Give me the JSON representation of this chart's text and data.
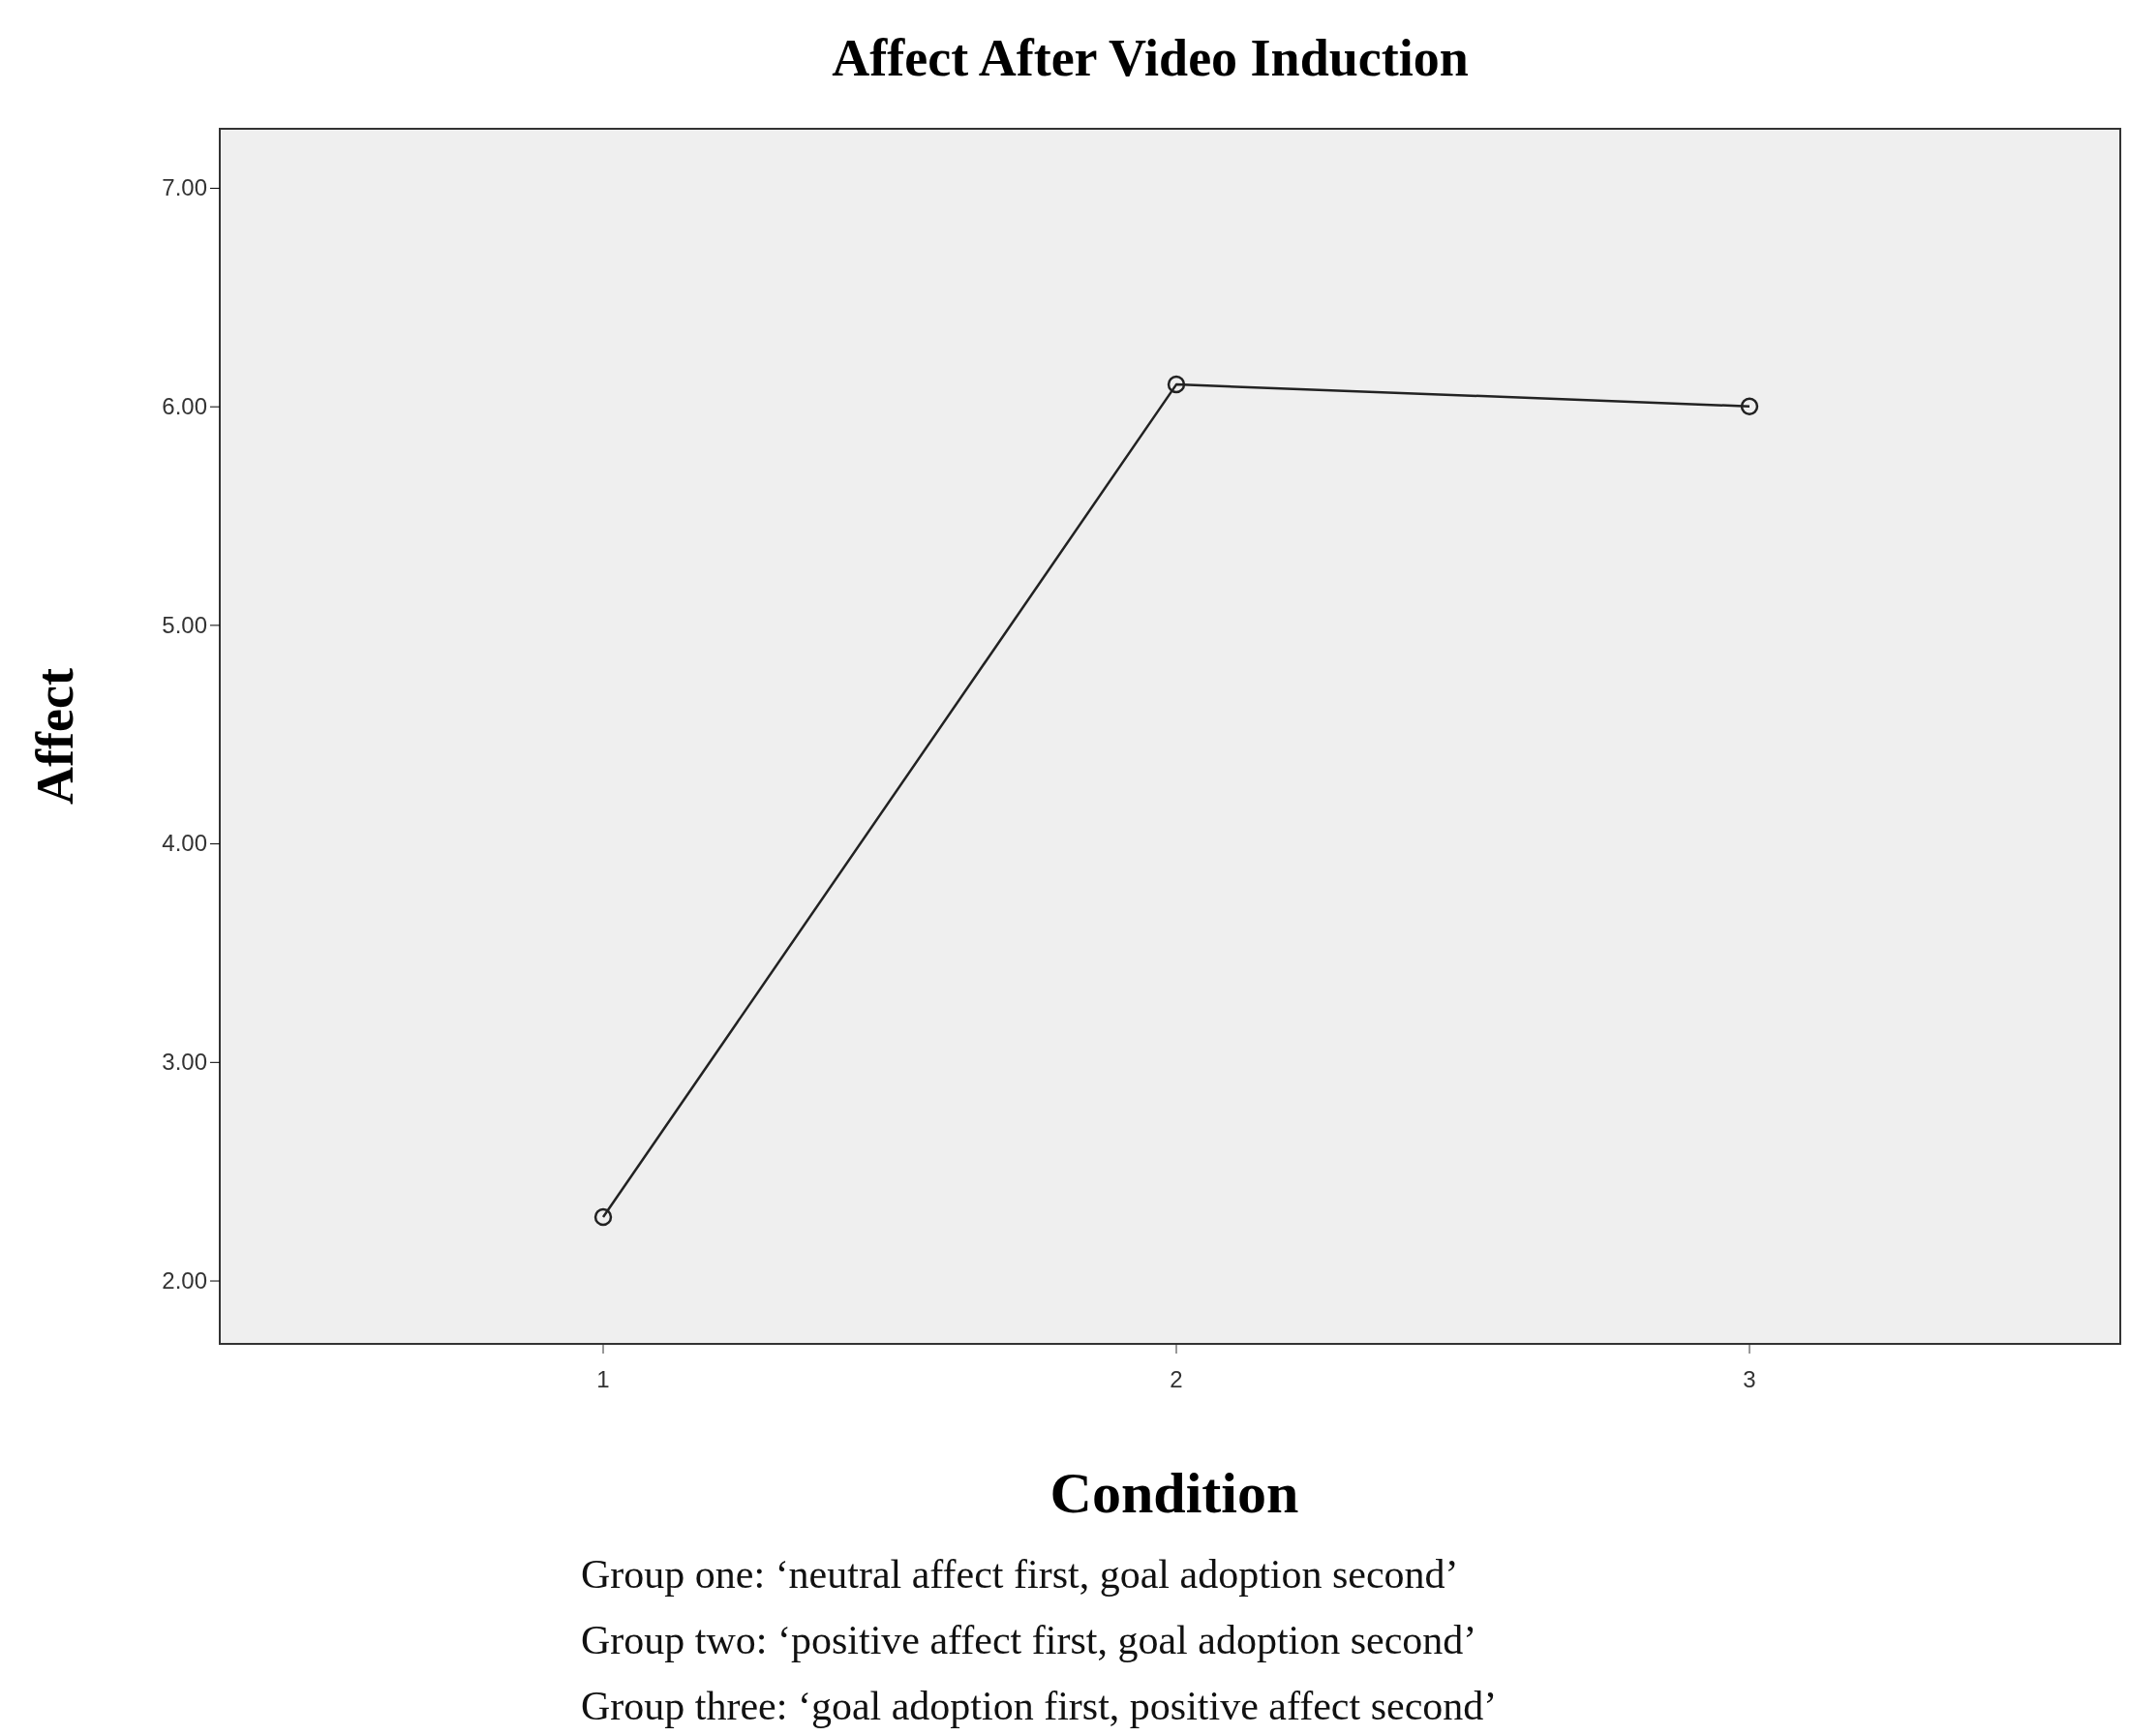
{
  "chart_data": {
    "type": "line",
    "title": "Affect After Video Induction",
    "xlabel": "Condition",
    "ylabel": "Affect",
    "categories": [
      "1",
      "2",
      "3"
    ],
    "series": [
      {
        "color": "#222222",
        "values": [
          2.29,
          6.1,
          6.0
        ]
      }
    ],
    "ylim": [
      1.71,
      7.27
    ],
    "yticks": [
      {
        "value": 2,
        "label": "2.00"
      },
      {
        "value": 3,
        "label": "3.00"
      },
      {
        "value": 4,
        "label": "4.00"
      },
      {
        "value": 5,
        "label": "5.00"
      },
      {
        "value": 6,
        "label": "6.00"
      },
      {
        "value": 7,
        "label": "7.00"
      }
    ],
    "marker": "circle",
    "line_style": "solid",
    "grid": false,
    "annotations": [
      "Group one: ‘neutral affect first, goal adoption second’",
      "Group two: ‘positive affect first, goal adoption second’",
      "Group three: ‘goal adoption first, positive affect second’"
    ]
  }
}
